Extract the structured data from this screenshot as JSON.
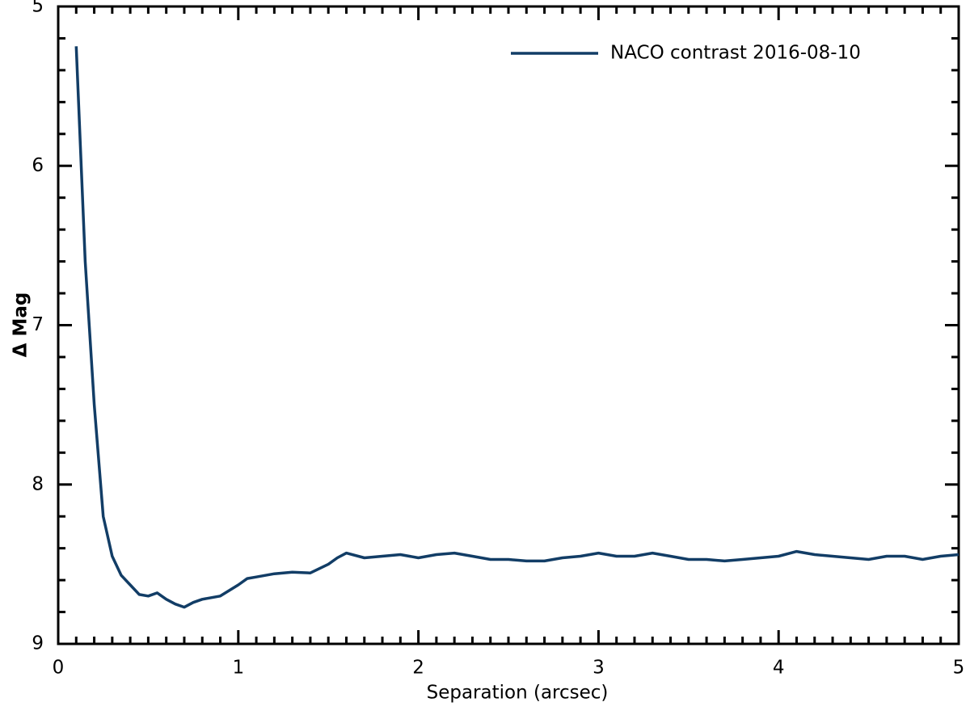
{
  "chart_data": {
    "type": "line",
    "xlabel": "Separation (arcsec)",
    "ylabel": "Δ Mag",
    "x": [
      0.1,
      0.15,
      0.2,
      0.25,
      0.3,
      0.35,
      0.4,
      0.45,
      0.5,
      0.55,
      0.6,
      0.65,
      0.7,
      0.75,
      0.8,
      0.9,
      1.0,
      1.05,
      1.1,
      1.2,
      1.3,
      1.4,
      1.5,
      1.55,
      1.6,
      1.7,
      1.8,
      1.9,
      2.0,
      2.1,
      2.2,
      2.3,
      2.4,
      2.5,
      2.6,
      2.7,
      2.8,
      2.9,
      3.0,
      3.1,
      3.2,
      3.3,
      3.4,
      3.5,
      3.6,
      3.7,
      3.8,
      3.9,
      4.0,
      4.1,
      4.2,
      4.3,
      4.4,
      4.5,
      4.6,
      4.7,
      4.8,
      4.9,
      5.0
    ],
    "series": [
      {
        "name": "NACO contrast 2016-08-10",
        "color": "#123d66",
        "values": [
          5.25,
          6.6,
          7.5,
          8.2,
          8.45,
          8.57,
          8.63,
          8.69,
          8.7,
          8.68,
          8.72,
          8.75,
          8.77,
          8.74,
          8.72,
          8.7,
          8.63,
          8.59,
          8.58,
          8.56,
          8.55,
          8.555,
          8.5,
          8.46,
          8.43,
          8.46,
          8.45,
          8.44,
          8.46,
          8.44,
          8.43,
          8.45,
          8.47,
          8.47,
          8.48,
          8.48,
          8.46,
          8.45,
          8.43,
          8.45,
          8.45,
          8.43,
          8.45,
          8.47,
          8.47,
          8.48,
          8.47,
          8.46,
          8.45,
          8.42,
          8.44,
          8.45,
          8.46,
          8.47,
          8.45,
          8.45,
          8.47,
          8.45,
          8.44
        ]
      }
    ],
    "xlim": [
      0,
      5
    ],
    "ylim": [
      5,
      9
    ],
    "xticks": [
      0,
      1,
      2,
      3,
      4,
      5
    ],
    "yticks": [
      5,
      6,
      7,
      8,
      9
    ],
    "xminorticks": [
      0.1,
      0.2,
      0.3,
      0.4,
      0.5,
      0.6,
      0.7,
      0.8,
      0.9,
      1.1,
      1.2,
      1.3,
      1.4,
      1.5,
      1.6,
      1.7,
      1.8,
      1.9,
      2.1,
      2.2,
      2.3,
      2.4,
      2.5,
      2.6,
      2.7,
      2.8,
      2.9,
      3.1,
      3.2,
      3.3,
      3.4,
      3.5,
      3.6,
      3.7,
      3.8,
      3.9,
      4.1,
      4.2,
      4.3,
      4.4,
      4.5,
      4.6,
      4.7,
      4.8,
      4.9
    ],
    "yminorticks": [
      5.2,
      5.4,
      5.6,
      5.8,
      6.2,
      6.4,
      6.6,
      6.8,
      7.2,
      7.4,
      7.6,
      7.8,
      8.2,
      8.4,
      8.6,
      8.8
    ],
    "legend": "upper-right"
  }
}
